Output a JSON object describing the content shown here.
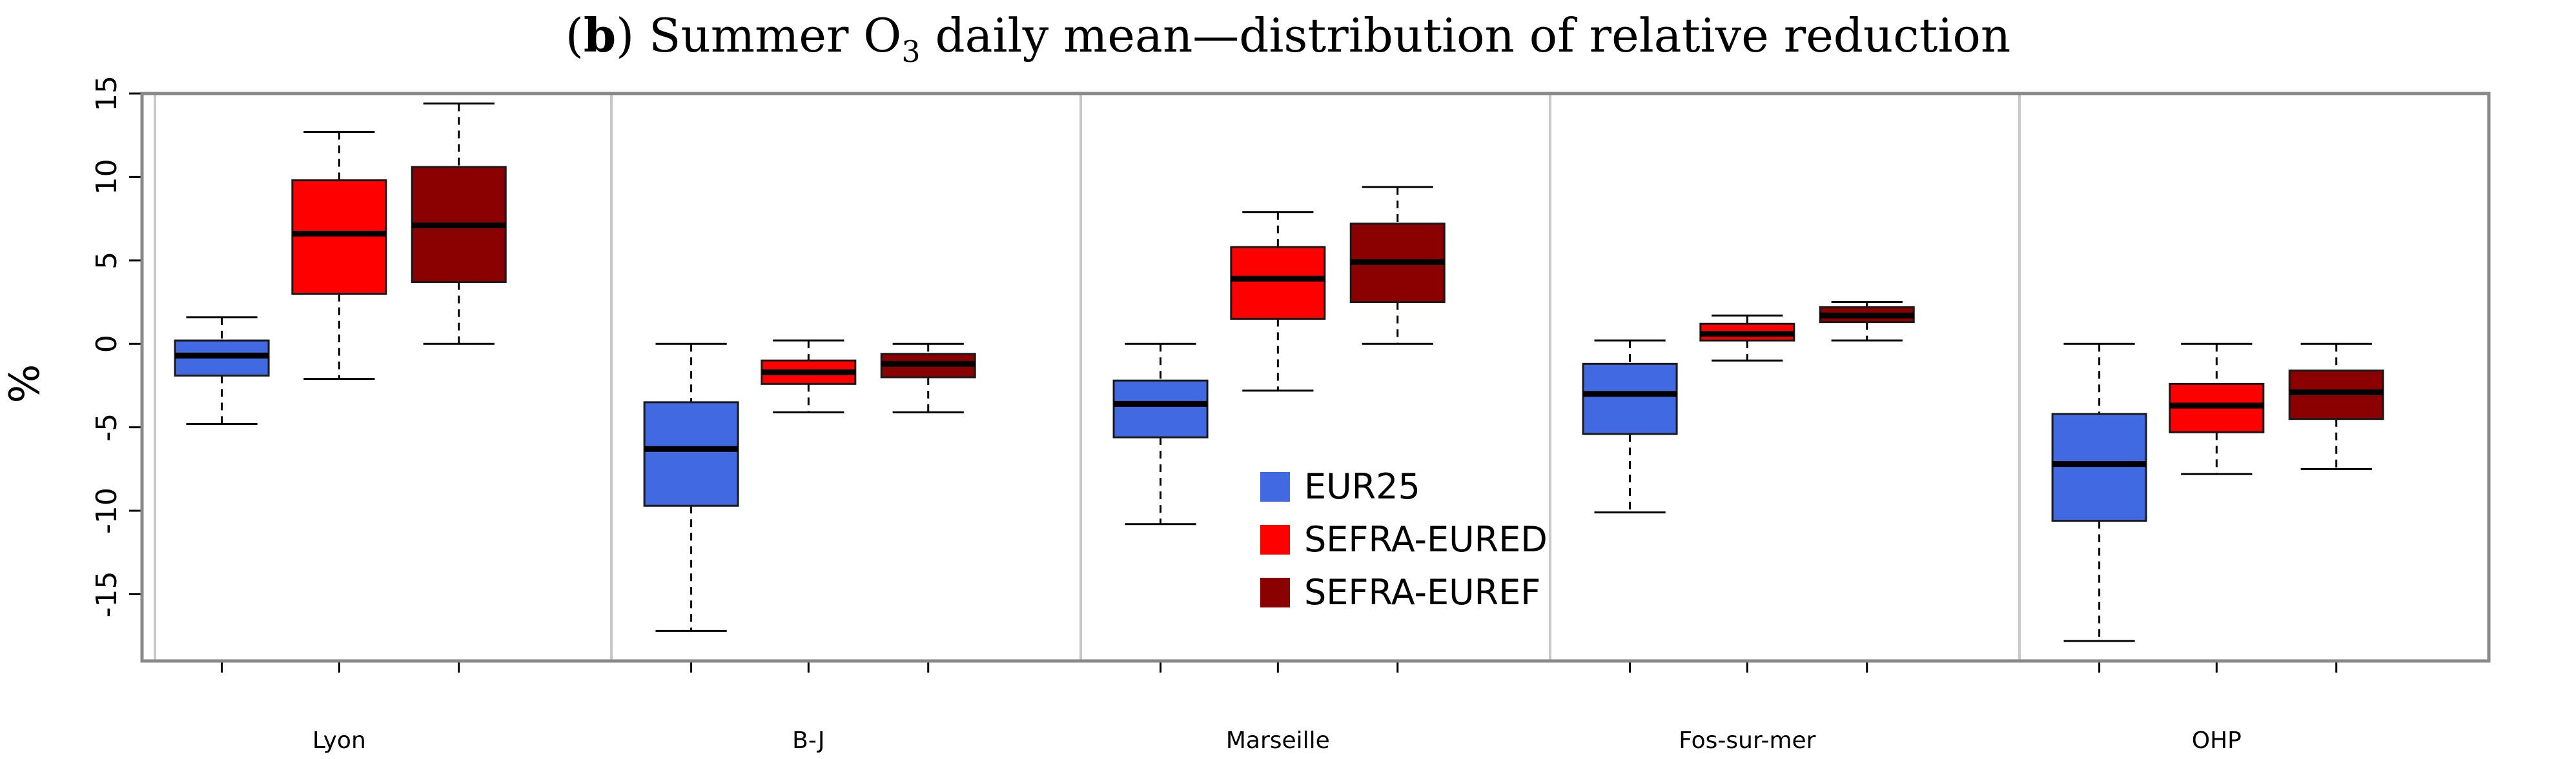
{
  "chart_data": {
    "type": "boxplot",
    "title_prefix": "(",
    "title_bold": "b",
    "title_suffix": ") Summer O",
    "title_sub": "3",
    "title_rest": " daily mean—distribution of relative reduction",
    "ylabel": "%",
    "xlabel": "",
    "ylim": [
      -19,
      15
    ],
    "yticks": [
      15,
      10,
      5,
      0,
      -5,
      -10,
      -15
    ],
    "categories": [
      "Lyon",
      "B-J",
      "Marseille",
      "Fos-sur-mer",
      "OHP"
    ],
    "legend_position": "center",
    "series": [
      {
        "name": "EUR25",
        "color": "#4169e1",
        "boxes": [
          {
            "whisker_low": -4.8,
            "q1": -1.9,
            "median": -0.7,
            "q3": 0.2,
            "whisker_high": 1.6
          },
          {
            "whisker_low": -17.2,
            "q1": -9.7,
            "median": -6.3,
            "q3": -3.5,
            "whisker_high": 0.0
          },
          {
            "whisker_low": -10.8,
            "q1": -5.6,
            "median": -3.6,
            "q3": -2.2,
            "whisker_high": 0.0
          },
          {
            "whisker_low": -10.1,
            "q1": -5.4,
            "median": -3.0,
            "q3": -1.2,
            "whisker_high": 0.2
          },
          {
            "whisker_low": -17.8,
            "q1": -10.6,
            "median": -7.2,
            "q3": -4.2,
            "whisker_high": 0.0
          }
        ]
      },
      {
        "name": "SEFRA-EURED",
        "color": "#ff0000",
        "boxes": [
          {
            "whisker_low": -2.1,
            "q1": 3.0,
            "median": 6.6,
            "q3": 9.8,
            "whisker_high": 12.7
          },
          {
            "whisker_low": -4.1,
            "q1": -2.4,
            "median": -1.7,
            "q3": -1.0,
            "whisker_high": 0.2
          },
          {
            "whisker_low": -2.8,
            "q1": 1.5,
            "median": 3.9,
            "q3": 5.8,
            "whisker_high": 7.9
          },
          {
            "whisker_low": -1.0,
            "q1": 0.2,
            "median": 0.6,
            "q3": 1.2,
            "whisker_high": 1.7
          },
          {
            "whisker_low": -7.8,
            "q1": -5.3,
            "median": -3.7,
            "q3": -2.4,
            "whisker_high": 0.0
          }
        ]
      },
      {
        "name": "SEFRA-EUREF",
        "color": "#8b0000",
        "boxes": [
          {
            "whisker_low": 0.0,
            "q1": 3.7,
            "median": 7.1,
            "q3": 10.6,
            "whisker_high": 14.4
          },
          {
            "whisker_low": -4.1,
            "q1": -2.0,
            "median": -1.2,
            "q3": -0.6,
            "whisker_high": 0.0
          },
          {
            "whisker_low": 0.0,
            "q1": 2.5,
            "median": 4.9,
            "q3": 7.2,
            "whisker_high": 9.4
          },
          {
            "whisker_low": 0.2,
            "q1": 1.3,
            "median": 1.7,
            "q3": 2.2,
            "whisker_high": 2.5
          },
          {
            "whisker_low": -7.5,
            "q1": -4.5,
            "median": -2.9,
            "q3": -1.6,
            "whisker_high": 0.0
          }
        ]
      }
    ]
  }
}
